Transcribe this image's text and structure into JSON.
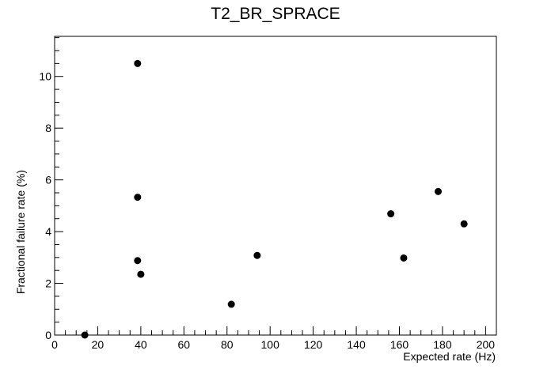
{
  "chart_data": {
    "type": "scatter",
    "title": "T2_BR_SPRACE",
    "xlabel": "Expected rate (Hz)",
    "ylabel": "Fractional failure rate (%)",
    "xlim": [
      0,
      205
    ],
    "ylim": [
      0,
      11.55
    ],
    "x_ticks": [
      0,
      20,
      40,
      60,
      80,
      100,
      120,
      140,
      160,
      180,
      200
    ],
    "y_ticks": [
      0,
      2,
      4,
      6,
      8,
      10
    ],
    "grid": false,
    "points": [
      {
        "x": 14,
        "y": 0
      },
      {
        "x": 38.5,
        "y": 10.5
      },
      {
        "x": 38.5,
        "y": 5.33
      },
      {
        "x": 38.5,
        "y": 2.88
      },
      {
        "x": 40,
        "y": 2.35
      },
      {
        "x": 82,
        "y": 1.19
      },
      {
        "x": 94,
        "y": 3.08
      },
      {
        "x": 156,
        "y": 4.69
      },
      {
        "x": 162,
        "y": 2.98
      },
      {
        "x": 178,
        "y": 5.55
      },
      {
        "x": 190,
        "y": 4.3
      }
    ],
    "marker_color": "#000000"
  }
}
